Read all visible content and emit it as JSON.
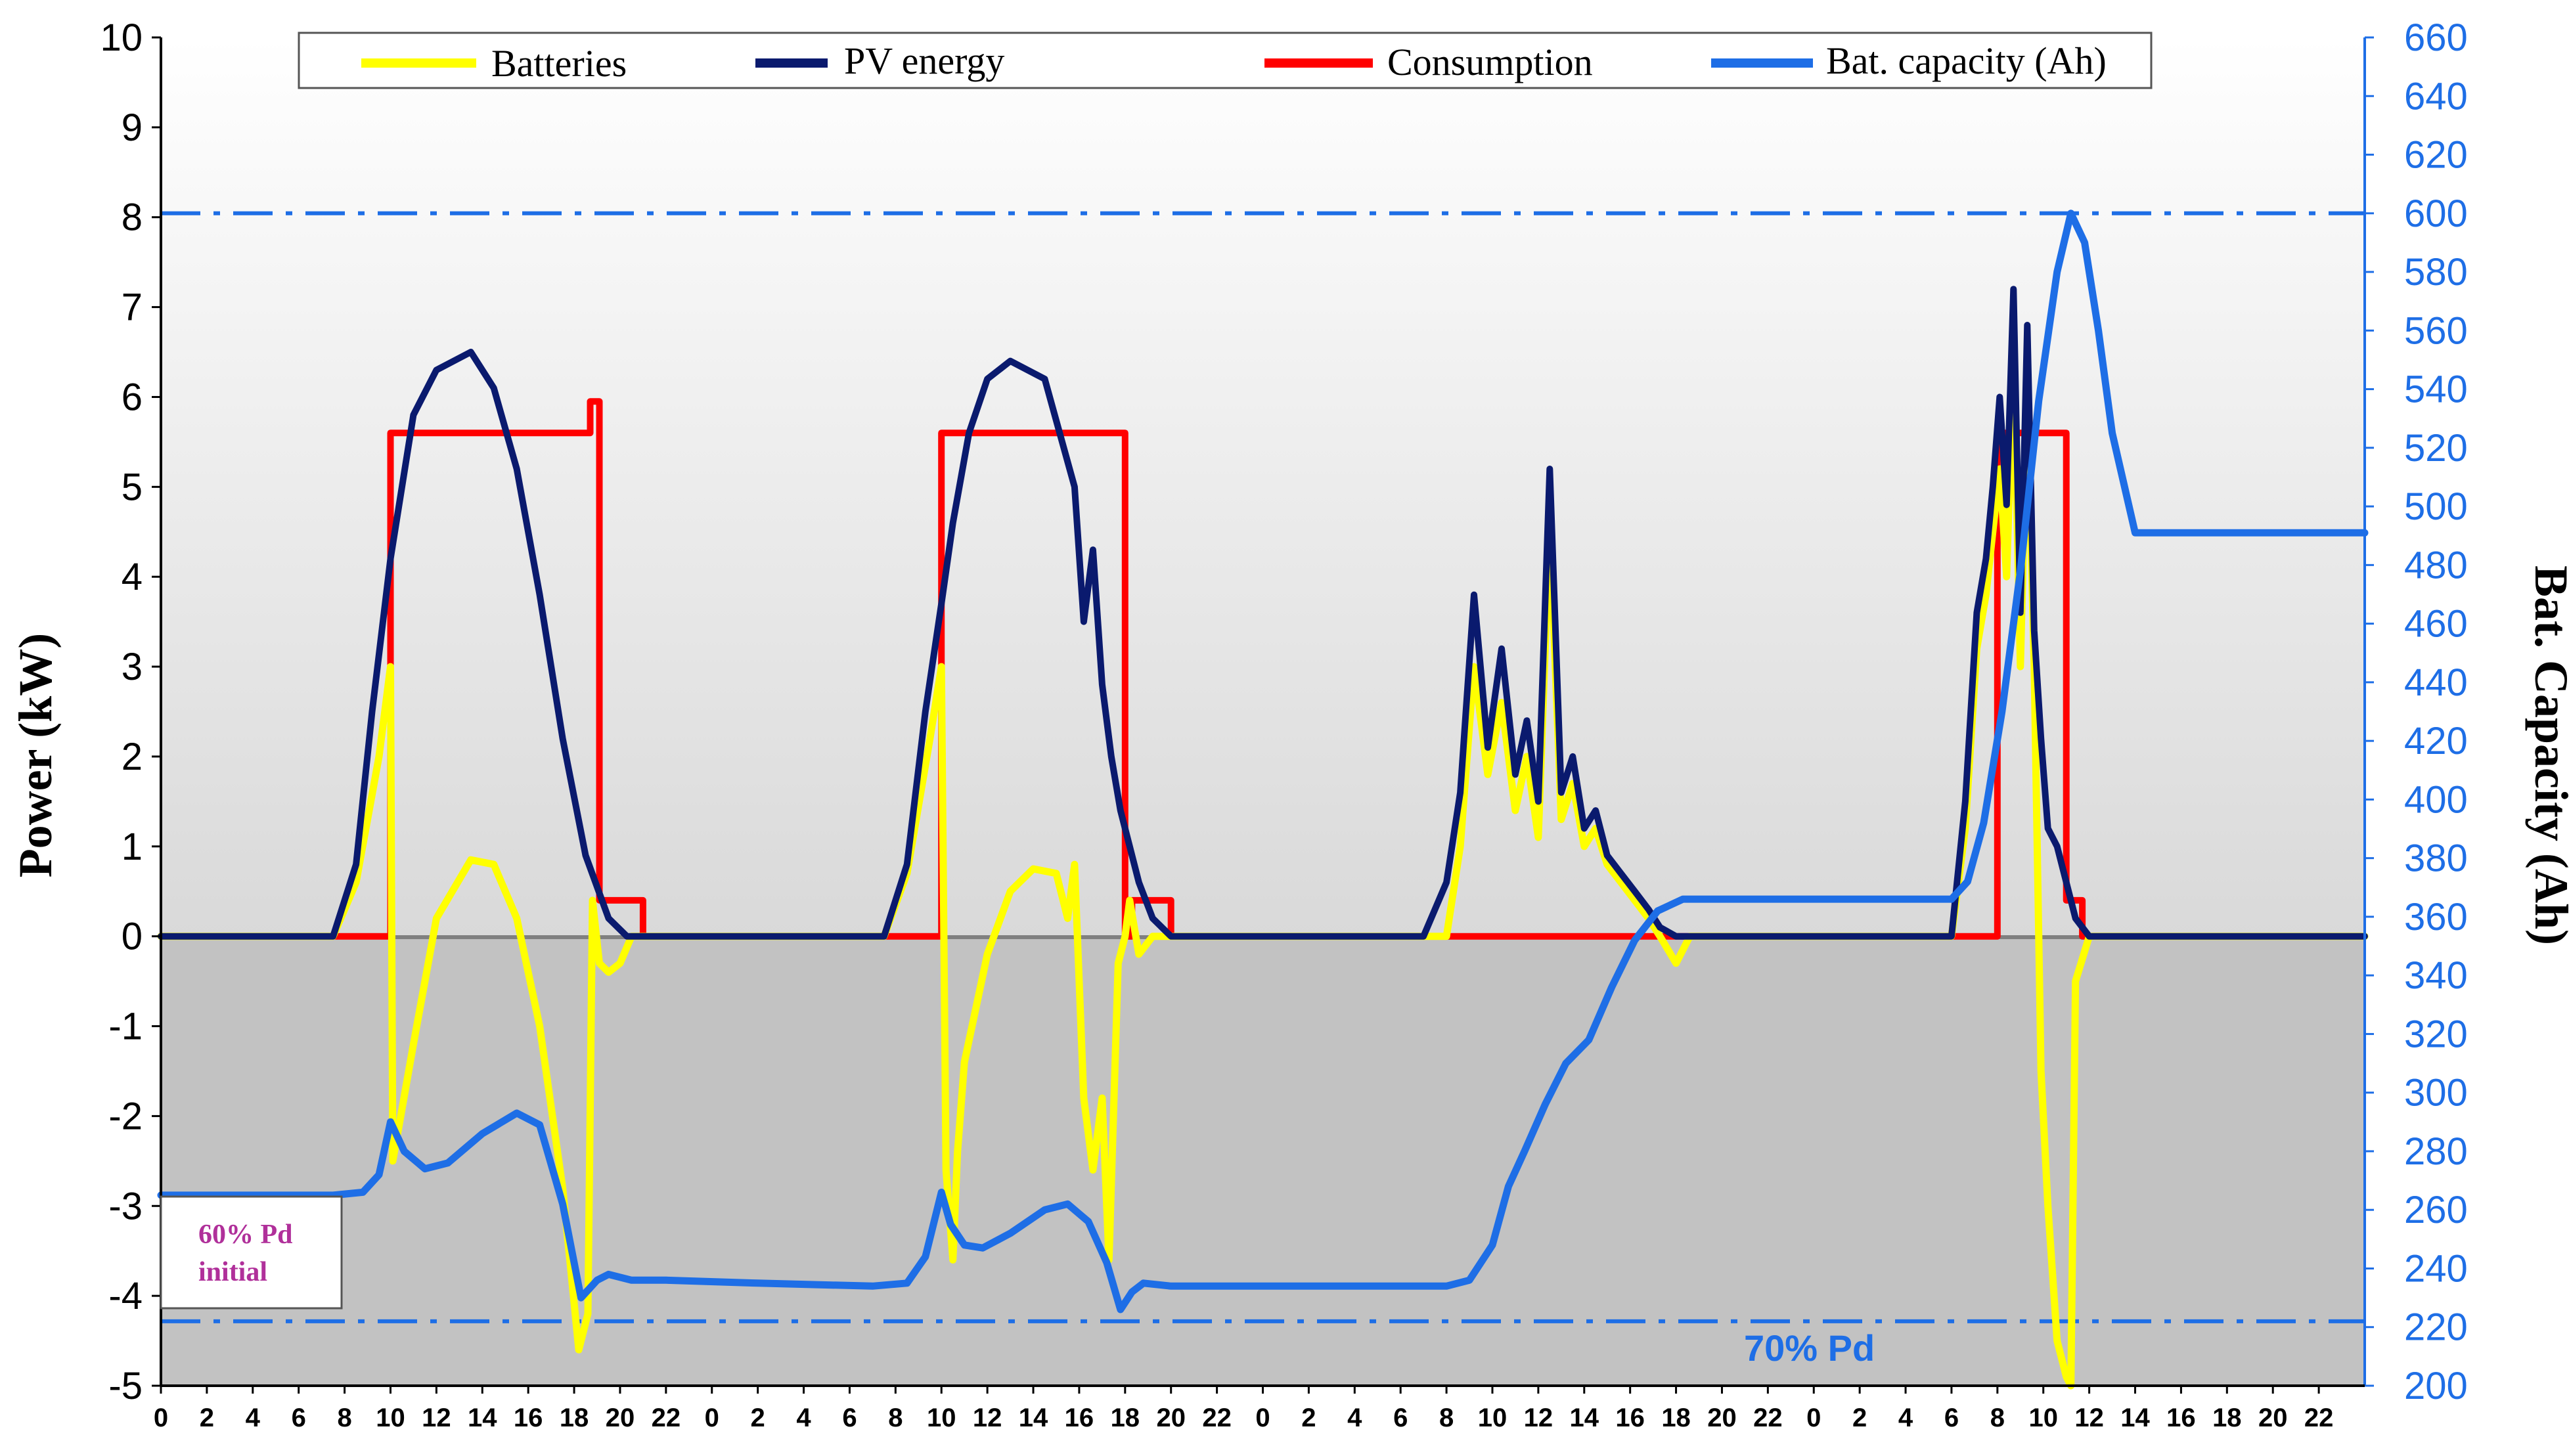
{
  "chart_data": {
    "type": "line",
    "title": "",
    "ylabel_left": "Power (kW)",
    "ylabel_right": "Bat. Capacity (Ah)",
    "ylim_left": [
      -5,
      10
    ],
    "ylim_right": [
      200,
      660
    ],
    "yticks_left": [
      "-5",
      "-4",
      "-3",
      "-2",
      "-1",
      "0",
      "1",
      "2",
      "3",
      "4",
      "5",
      "6",
      "7",
      "8",
      "9",
      "10"
    ],
    "yticks_right": [
      "200",
      "220",
      "240",
      "260",
      "280",
      "300",
      "320",
      "340",
      "360",
      "380",
      "400",
      "420",
      "440",
      "460",
      "480",
      "500",
      "520",
      "540",
      "560",
      "580",
      "600",
      "620",
      "640",
      "660"
    ],
    "xtick_labels": [
      "0",
      "2",
      "4",
      "6",
      "8",
      "10",
      "12",
      "14",
      "16",
      "18",
      "20",
      "22",
      "0",
      "2",
      "4",
      "6",
      "8",
      "10",
      "12",
      "14",
      "16",
      "18",
      "20",
      "22",
      "0",
      "2",
      "4",
      "6",
      "8",
      "10",
      "12",
      "14",
      "16",
      "18",
      "20",
      "22",
      "0",
      "2",
      "4",
      "6",
      "8",
      "10",
      "12",
      "14",
      "16",
      "18",
      "20",
      "22"
    ],
    "x_range_hours": [
      0,
      96
    ],
    "background": {
      "top": "#ffffff",
      "bottom": "#c6c6c6"
    },
    "legend": {
      "position": "top",
      "entries": [
        {
          "label": "Batteries",
          "color": "#ffff00"
        },
        {
          "label": "PV energy",
          "color": "#0a1a6e"
        },
        {
          "label": "Consumption",
          "color": "#ff0000"
        },
        {
          "label": "Bat. capacity (Ah)",
          "color": "#1e6ee6"
        }
      ]
    },
    "reference_lines": [
      {
        "label": "",
        "axis": "right",
        "value": 600,
        "color": "#1e6ee6",
        "style": "dash-dot"
      },
      {
        "label": "70% Pd",
        "axis": "right",
        "value": 222,
        "color": "#1e6ee6",
        "style": "dash-dot"
      }
    ],
    "annotation_box": {
      "lines": [
        "60% Pd",
        "initial"
      ],
      "color": "#b0309a"
    },
    "series": [
      {
        "name": "Consumption",
        "axis": "left",
        "color": "#ff0000",
        "x": [
          0,
          10,
          10,
          18.7,
          18.7,
          19.1,
          19.1,
          21,
          21,
          34,
          34,
          42,
          42,
          42.3,
          42.3,
          44,
          44,
          80,
          80,
          83,
          83,
          83.7,
          83.7,
          96
        ],
        "y": [
          0,
          0,
          5.6,
          5.6,
          5.95,
          5.95,
          0.4,
          0.4,
          0,
          0,
          5.6,
          5.6,
          0,
          0,
          0.4,
          0.4,
          0,
          0,
          5.6,
          5.6,
          0.4,
          0.4,
          0,
          0
        ]
      },
      {
        "name": "Bat. capacity (Ah)",
        "axis": "right",
        "color": "#1e6ee6",
        "x": [
          0,
          7.5,
          8.8,
          9.5,
          10,
          10.6,
          11.5,
          12.5,
          14,
          15.5,
          16.5,
          17.5,
          18.3,
          19,
          19.5,
          20.5,
          22,
          26,
          31,
          32.5,
          33.3,
          34,
          34.4,
          35,
          35.8,
          37,
          38.5,
          39.5,
          40.4,
          41.2,
          41.8,
          42.3,
          42.8,
          44,
          48,
          54,
          56,
          57,
          58,
          58.7,
          59.4,
          60.3,
          61.2,
          62.2,
          63.2,
          64.2,
          65.2,
          66.3,
          67,
          69,
          72,
          76,
          78,
          78.7,
          79.4,
          80.2,
          81,
          81.8,
          82.6,
          83.2,
          83.8,
          84.4,
          85,
          86,
          96
        ],
        "y": [
          265,
          265,
          266,
          272,
          290,
          280,
          274,
          276,
          286,
          293,
          289,
          262,
          230,
          236,
          238,
          236,
          236,
          235,
          234,
          235,
          244,
          266,
          255,
          248,
          247,
          252,
          260,
          262,
          256,
          242,
          226,
          232,
          235,
          234,
          234,
          234,
          234,
          236,
          248,
          268,
          280,
          296,
          310,
          318,
          336,
          352,
          362,
          366,
          366,
          366,
          366,
          366,
          366,
          372,
          392,
          430,
          478,
          536,
          580,
          600,
          590,
          560,
          525,
          491,
          491
        ]
      },
      {
        "name": "PV energy",
        "axis": "left",
        "color": "#0a1a6e",
        "x": [
          0,
          7.5,
          8.5,
          9.2,
          10,
          11,
          12,
          13.5,
          14.5,
          15.5,
          16.5,
          17.5,
          18.5,
          19.5,
          20.3,
          21,
          31.5,
          32.5,
          33.3,
          34,
          34.5,
          35.2,
          36,
          37,
          38.5,
          39.8,
          40.2,
          40.6,
          41,
          41.4,
          41.8,
          42.2,
          42.6,
          43.2,
          44,
          55,
          56,
          56.6,
          57.2,
          57.8,
          58.4,
          59.0,
          59.5,
          60,
          60.5,
          61,
          61.5,
          62,
          62.5,
          63,
          63.6,
          64.2,
          64.8,
          65.3,
          66,
          66.6,
          67,
          78,
          78.6,
          79.1,
          79.5,
          79.8,
          80.1,
          80.4,
          80.7,
          81,
          81.3,
          81.6,
          81.9,
          82.2,
          82.6,
          83,
          83.4,
          84,
          96
        ],
        "y": [
          0,
          0,
          0.8,
          2.5,
          4.2,
          5.8,
          6.3,
          6.5,
          6.1,
          5.2,
          3.8,
          2.2,
          0.9,
          0.2,
          0,
          0,
          0,
          0.8,
          2.5,
          3.7,
          4.6,
          5.6,
          6.2,
          6.4,
          6.2,
          5.0,
          3.5,
          4.3,
          2.8,
          2.0,
          1.4,
          1.0,
          0.6,
          0.2,
          0,
          0,
          0.6,
          1.6,
          3.8,
          2.1,
          3.2,
          1.8,
          2.4,
          1.5,
          5.2,
          1.6,
          2.0,
          1.2,
          1.4,
          0.9,
          0.7,
          0.5,
          0.3,
          0.1,
          0,
          0,
          0,
          0,
          1.5,
          3.6,
          4.2,
          5.0,
          6.0,
          4.8,
          7.2,
          3.6,
          6.8,
          3.4,
          2.2,
          1.2,
          1.0,
          0.6,
          0.2,
          0,
          0
        ]
      },
      {
        "name": "Batteries",
        "axis": "left",
        "color": "#ffff00",
        "x": [
          0,
          7.5,
          8.5,
          9.5,
          10,
          10.1,
          11,
          12,
          13.5,
          14.5,
          15.5,
          16.5,
          17.5,
          18.2,
          18.6,
          18.8,
          19.1,
          19.5,
          20,
          20.5,
          21,
          31.5,
          32.5,
          33.5,
          34,
          34.2,
          34.5,
          34.7,
          35,
          36,
          37,
          38,
          39,
          39.5,
          39.8,
          40.2,
          40.6,
          41,
          41.3,
          41.7,
          42,
          42.2,
          42.6,
          43.2,
          44,
          56,
          56.6,
          57.2,
          57.8,
          58.4,
          59.0,
          59.5,
          60,
          60.5,
          61,
          61.5,
          62,
          62.5,
          63,
          63.6,
          64.2,
          64.8,
          65.3,
          66,
          66.6,
          67,
          78,
          78.6,
          79.1,
          79.5,
          79.8,
          80.1,
          80.4,
          80.7,
          81,
          81.3,
          81.6,
          81.9,
          82.2,
          82.6,
          83,
          83.2,
          83.4,
          84,
          96
        ],
        "y": [
          0,
          0,
          0.6,
          2.0,
          3.0,
          -2.5,
          -1.2,
          0.2,
          0.85,
          0.8,
          0.2,
          -1.0,
          -2.8,
          -4.6,
          -4.2,
          0.4,
          -0.3,
          -0.4,
          -0.3,
          0,
          0,
          0,
          0.7,
          2.2,
          3.0,
          -2.6,
          -3.6,
          -2.4,
          -1.4,
          -0.2,
          0.5,
          0.75,
          0.7,
          0.2,
          0.8,
          -1.8,
          -2.6,
          -1.8,
          -3.6,
          -0.3,
          0,
          0.4,
          -0.2,
          0,
          0,
          0,
          1.0,
          3.0,
          1.8,
          2.6,
          1.4,
          2.0,
          1.1,
          4.6,
          1.3,
          1.7,
          1.0,
          1.2,
          0.8,
          0.6,
          0.4,
          0.2,
          0,
          -0.3,
          0,
          0,
          0,
          1.2,
          3.2,
          3.8,
          4.5,
          5.2,
          4.0,
          6.4,
          3.0,
          6.0,
          3.0,
          -1.5,
          -3.0,
          -4.5,
          -4.9,
          -5.0,
          -0.5,
          0,
          0
        ]
      }
    ]
  }
}
